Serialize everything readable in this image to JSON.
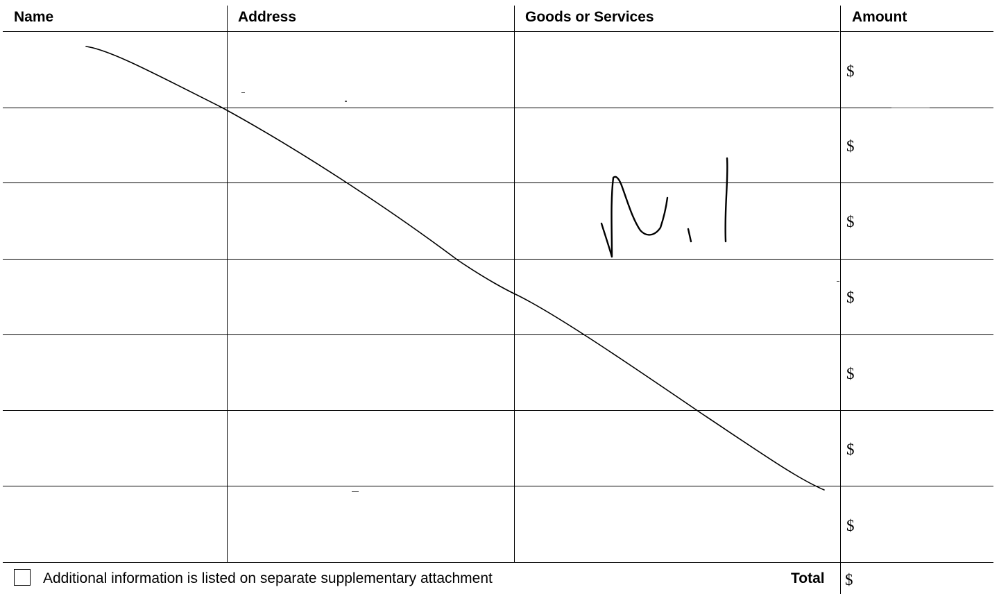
{
  "columns": [
    {
      "label": "Name"
    },
    {
      "label": "Address"
    },
    {
      "label": "Goods or Services"
    },
    {
      "label": "Amount"
    }
  ],
  "rows": [
    {
      "amount_symbol": "$"
    },
    {
      "amount_symbol": "$"
    },
    {
      "amount_symbol": "$"
    },
    {
      "amount_symbol": "$"
    },
    {
      "amount_symbol": "$"
    },
    {
      "amount_symbol": "$"
    },
    {
      "amount_symbol": "$"
    }
  ],
  "footer": {
    "checkbox_label": "Additional information is listed on separate supplementary attachment",
    "checkbox_checked": false,
    "total_label": "Total",
    "total_symbol": "$"
  },
  "handwriting": {
    "text": "Nil",
    "strike_line": true
  }
}
